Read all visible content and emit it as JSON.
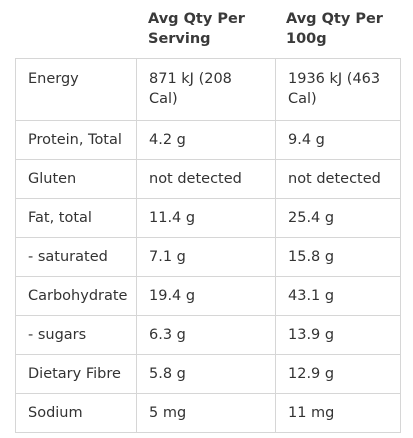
{
  "table": {
    "headers": [
      "",
      "Avg Qty Per Serving",
      "Avg Qty Per 100g"
    ],
    "rows": [
      {
        "nutrient": "Energy",
        "per_serving": "871 kJ (208 Cal)",
        "per_100g": "1936 kJ (463 Cal)"
      },
      {
        "nutrient": "Protein, Total",
        "per_serving": "4.2 g",
        "per_100g": "9.4 g"
      },
      {
        "nutrient": "Gluten",
        "per_serving": "not detected",
        "per_100g": "not detected"
      },
      {
        "nutrient": "Fat, total",
        "per_serving": "11.4 g",
        "per_100g": "25.4 g"
      },
      {
        "nutrient": "- saturated",
        "per_serving": "7.1 g",
        "per_100g": "15.8 g"
      },
      {
        "nutrient": "Carbohydrate",
        "per_serving": "19.4 g",
        "per_100g": "43.1 g"
      },
      {
        "nutrient": "- sugars",
        "per_serving": "6.3 g",
        "per_100g": "13.9 g"
      },
      {
        "nutrient": "Dietary Fibre",
        "per_serving": "5.8 g",
        "per_100g": "12.9 g"
      },
      {
        "nutrient": "Sodium",
        "per_serving": "5 mg",
        "per_100g": "11 mg"
      }
    ]
  }
}
